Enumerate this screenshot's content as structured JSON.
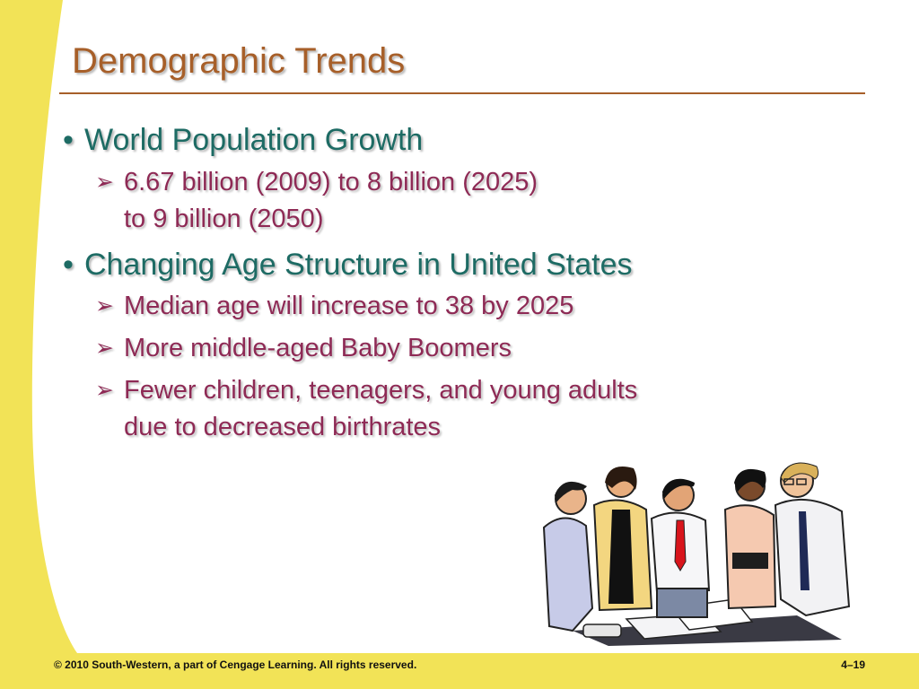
{
  "slide": {
    "title": "Demographic Trends",
    "bullets": [
      {
        "text": "World Population Growth",
        "sub": [
          {
            "lines": [
              "6.67 billion (2009) to 8 billion (2025)",
              "to 9 billion (2050)"
            ]
          }
        ]
      },
      {
        "text": "Changing Age Structure in United States",
        "sub": [
          {
            "lines": [
              "Median age will increase to 38 by 2025"
            ]
          },
          {
            "lines": [
              "More middle-aged Baby Boomers"
            ]
          },
          {
            "lines": [
              "Fewer children, teenagers, and young adults",
              "due to decreased birthrates"
            ]
          }
        ]
      }
    ]
  },
  "footer": {
    "copyright": "© 2010 South-Western, a part of Cengage Learning. All rights reserved.",
    "page_number": "4–19"
  },
  "colors": {
    "title": "#a75f29",
    "level1_text": "#1d6b64",
    "level2_text": "#8e2a55",
    "band": "#f2e357"
  },
  "icons": {
    "bullet": "round-bullet-icon",
    "sub_bullet": "arrow-bullet-icon",
    "clipart": "business-team-clipart"
  }
}
